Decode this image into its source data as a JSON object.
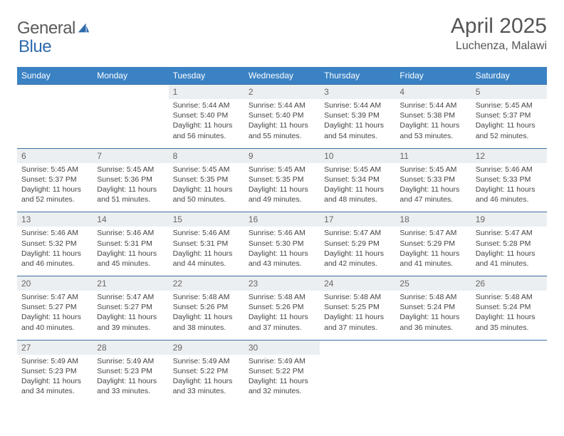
{
  "logo": {
    "text1": "General",
    "text2": "Blue"
  },
  "title": "April 2025",
  "location": "Luchenza, Malawi",
  "colors": {
    "header_bg": "#3b82c4",
    "header_text": "#ffffff",
    "daynum_bg": "#eceff1",
    "row_border": "#3b6fa0",
    "body_text": "#444444",
    "title_text": "#555555",
    "logo_gray": "#5a5a5a",
    "logo_blue": "#2f6aad"
  },
  "weekdays": [
    "Sunday",
    "Monday",
    "Tuesday",
    "Wednesday",
    "Thursday",
    "Friday",
    "Saturday"
  ],
  "weeks": [
    [
      null,
      null,
      {
        "n": "1",
        "sr": "5:44 AM",
        "ss": "5:40 PM",
        "dl": "11 hours and 56 minutes."
      },
      {
        "n": "2",
        "sr": "5:44 AM",
        "ss": "5:40 PM",
        "dl": "11 hours and 55 minutes."
      },
      {
        "n": "3",
        "sr": "5:44 AM",
        "ss": "5:39 PM",
        "dl": "11 hours and 54 minutes."
      },
      {
        "n": "4",
        "sr": "5:44 AM",
        "ss": "5:38 PM",
        "dl": "11 hours and 53 minutes."
      },
      {
        "n": "5",
        "sr": "5:45 AM",
        "ss": "5:37 PM",
        "dl": "11 hours and 52 minutes."
      }
    ],
    [
      {
        "n": "6",
        "sr": "5:45 AM",
        "ss": "5:37 PM",
        "dl": "11 hours and 52 minutes."
      },
      {
        "n": "7",
        "sr": "5:45 AM",
        "ss": "5:36 PM",
        "dl": "11 hours and 51 minutes."
      },
      {
        "n": "8",
        "sr": "5:45 AM",
        "ss": "5:35 PM",
        "dl": "11 hours and 50 minutes."
      },
      {
        "n": "9",
        "sr": "5:45 AM",
        "ss": "5:35 PM",
        "dl": "11 hours and 49 minutes."
      },
      {
        "n": "10",
        "sr": "5:45 AM",
        "ss": "5:34 PM",
        "dl": "11 hours and 48 minutes."
      },
      {
        "n": "11",
        "sr": "5:45 AM",
        "ss": "5:33 PM",
        "dl": "11 hours and 47 minutes."
      },
      {
        "n": "12",
        "sr": "5:46 AM",
        "ss": "5:33 PM",
        "dl": "11 hours and 46 minutes."
      }
    ],
    [
      {
        "n": "13",
        "sr": "5:46 AM",
        "ss": "5:32 PM",
        "dl": "11 hours and 46 minutes."
      },
      {
        "n": "14",
        "sr": "5:46 AM",
        "ss": "5:31 PM",
        "dl": "11 hours and 45 minutes."
      },
      {
        "n": "15",
        "sr": "5:46 AM",
        "ss": "5:31 PM",
        "dl": "11 hours and 44 minutes."
      },
      {
        "n": "16",
        "sr": "5:46 AM",
        "ss": "5:30 PM",
        "dl": "11 hours and 43 minutes."
      },
      {
        "n": "17",
        "sr": "5:47 AM",
        "ss": "5:29 PM",
        "dl": "11 hours and 42 minutes."
      },
      {
        "n": "18",
        "sr": "5:47 AM",
        "ss": "5:29 PM",
        "dl": "11 hours and 41 minutes."
      },
      {
        "n": "19",
        "sr": "5:47 AM",
        "ss": "5:28 PM",
        "dl": "11 hours and 41 minutes."
      }
    ],
    [
      {
        "n": "20",
        "sr": "5:47 AM",
        "ss": "5:27 PM",
        "dl": "11 hours and 40 minutes."
      },
      {
        "n": "21",
        "sr": "5:47 AM",
        "ss": "5:27 PM",
        "dl": "11 hours and 39 minutes."
      },
      {
        "n": "22",
        "sr": "5:48 AM",
        "ss": "5:26 PM",
        "dl": "11 hours and 38 minutes."
      },
      {
        "n": "23",
        "sr": "5:48 AM",
        "ss": "5:26 PM",
        "dl": "11 hours and 37 minutes."
      },
      {
        "n": "24",
        "sr": "5:48 AM",
        "ss": "5:25 PM",
        "dl": "11 hours and 37 minutes."
      },
      {
        "n": "25",
        "sr": "5:48 AM",
        "ss": "5:24 PM",
        "dl": "11 hours and 36 minutes."
      },
      {
        "n": "26",
        "sr": "5:48 AM",
        "ss": "5:24 PM",
        "dl": "11 hours and 35 minutes."
      }
    ],
    [
      {
        "n": "27",
        "sr": "5:49 AM",
        "ss": "5:23 PM",
        "dl": "11 hours and 34 minutes."
      },
      {
        "n": "28",
        "sr": "5:49 AM",
        "ss": "5:23 PM",
        "dl": "11 hours and 33 minutes."
      },
      {
        "n": "29",
        "sr": "5:49 AM",
        "ss": "5:22 PM",
        "dl": "11 hours and 33 minutes."
      },
      {
        "n": "30",
        "sr": "5:49 AM",
        "ss": "5:22 PM",
        "dl": "11 hours and 32 minutes."
      },
      null,
      null,
      null
    ]
  ],
  "labels": {
    "sunrise": "Sunrise: ",
    "sunset": "Sunset: ",
    "daylight": "Daylight: "
  }
}
